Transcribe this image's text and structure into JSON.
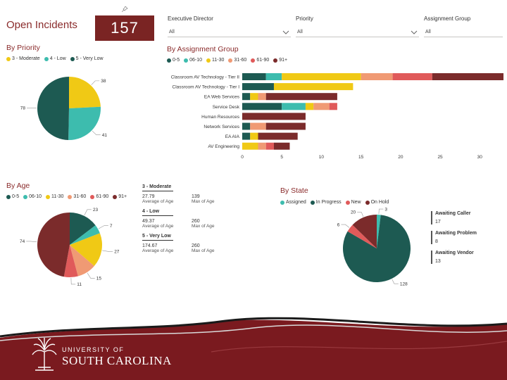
{
  "header": {
    "title": "Open Incidents",
    "kpi_value": "157"
  },
  "filters": [
    {
      "label": "Executive Director",
      "value": "All"
    },
    {
      "label": "Priority",
      "value": "All"
    },
    {
      "label": "Assignment Group",
      "value": "All"
    }
  ],
  "colors": {
    "brand": "#7a2423",
    "b0_5": "#1d5a52",
    "b6_10": "#3dbcae",
    "b11_30": "#f0c915",
    "b31_60": "#f09a74",
    "b61_90": "#e05a5a",
    "b91": "#7b2b2b",
    "assigned": "#3dbcae",
    "in_progress": "#1d5a52",
    "new": "#e05a5a",
    "on_hold": "#7b2b2b"
  },
  "priority": {
    "title": "By Priority",
    "legend": [
      "3 - Moderate",
      "4 - Low",
      "5 - Very Low"
    ],
    "chart_data": {
      "type": "pie",
      "labels": [
        "3 - Moderate",
        "4 - Low",
        "5 - Very Low"
      ],
      "values": [
        38,
        41,
        78
      ]
    }
  },
  "assignment": {
    "title": "By Assignment Group",
    "legend": [
      "0-5",
      "06-10",
      "11-30",
      "31-60",
      "61-90",
      "91+"
    ],
    "chart_data": {
      "type": "bar",
      "orientation": "horizontal",
      "stacked": true,
      "categories": [
        "Classroom AV Technology - Tier II",
        "Classroom AV Technology - Tier I",
        "EA Web Services",
        "Service Desk",
        "Human Resources",
        "Network Services",
        "EA AIA",
        "AV Engineering"
      ],
      "series": [
        {
          "name": "0-5",
          "values": [
            3,
            4,
            1,
            5,
            0,
            1,
            1,
            0
          ]
        },
        {
          "name": "06-10",
          "values": [
            2,
            0,
            0,
            3,
            0,
            0,
            0,
            0
          ]
        },
        {
          "name": "11-30",
          "values": [
            10,
            10,
            1,
            1,
            0,
            0,
            1,
            2
          ]
        },
        {
          "name": "31-60",
          "values": [
            4,
            0,
            1,
            2,
            0,
            2,
            0,
            1
          ]
        },
        {
          "name": "61-90",
          "values": [
            5,
            0,
            0,
            1,
            0,
            0,
            0,
            1
          ]
        },
        {
          "name": "91+",
          "values": [
            9,
            0,
            9,
            0,
            8,
            5,
            5,
            2
          ]
        }
      ],
      "xticks": [
        "0",
        "5",
        "10",
        "15",
        "20",
        "25",
        "30"
      ],
      "xlim": [
        0,
        33
      ]
    }
  },
  "age": {
    "title": "By Age",
    "legend": [
      "0-5",
      "06-10",
      "11-30",
      "31-60",
      "61-90",
      "91+"
    ],
    "chart_data": {
      "type": "pie",
      "labels": [
        "0-5",
        "06-10",
        "11-30",
        "31-60",
        "61-90",
        "91+"
      ],
      "values": [
        23,
        7,
        27,
        15,
        11,
        74
      ]
    },
    "stats": [
      {
        "name": "3 - Moderate",
        "avg": "27.79",
        "avg_label": "Average of Age",
        "max": "139",
        "max_label": "Max of Age"
      },
      {
        "name": "4 - Low",
        "avg": "49.37",
        "avg_label": "Average of Age",
        "max": "260",
        "max_label": "Max of Age"
      },
      {
        "name": "5 - Very Low",
        "avg": "174.67",
        "avg_label": "Average of Age",
        "max": "260",
        "max_label": "Max of Age"
      }
    ]
  },
  "state": {
    "title": "By State",
    "legend": [
      "Assigned",
      "In Progress",
      "New",
      "On Hold"
    ],
    "chart_data": {
      "type": "pie",
      "labels": [
        "Assigned",
        "In Progress",
        "New",
        "On Hold"
      ],
      "values": [
        3,
        128,
        6,
        20
      ]
    },
    "cards": [
      {
        "label": "Awaiting Caller",
        "value": "17"
      },
      {
        "label": "Awaiting Problem",
        "value": "8"
      },
      {
        "label": "Awaiting Vendor",
        "value": "13"
      }
    ]
  },
  "footer": {
    "line1": "UNIVERSITY OF",
    "line2": "SOUTH CAROLINA"
  }
}
